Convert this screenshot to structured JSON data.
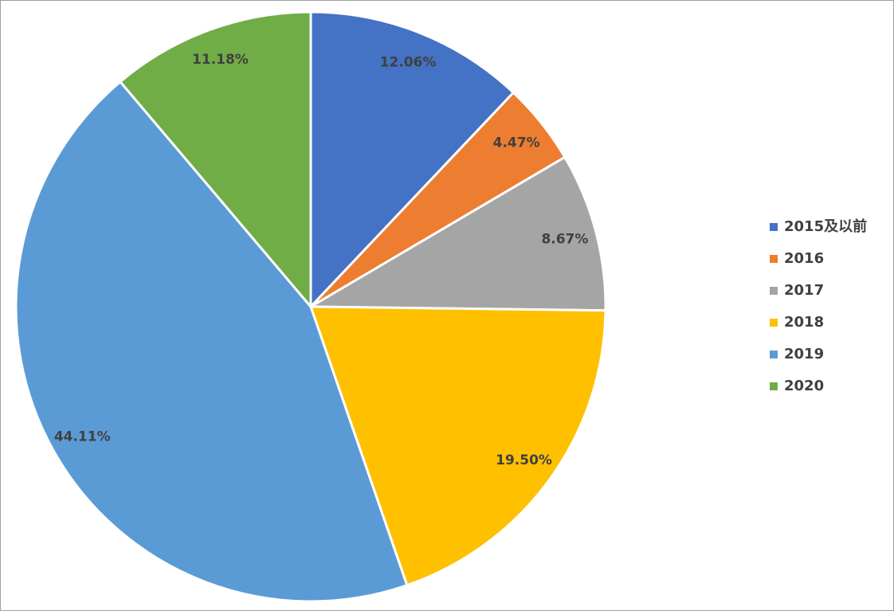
{
  "chart_data": {
    "type": "pie",
    "categories": [
      "2015及以前",
      "2016",
      "2017",
      "2018",
      "2019",
      "2020"
    ],
    "values": [
      12.06,
      4.47,
      8.67,
      19.5,
      44.11,
      11.18
    ],
    "value_labels": [
      "12.06%",
      "4.47%",
      "8.67%",
      "19.50%",
      "44.11%",
      "11.18%"
    ],
    "colors": [
      "#4472c4",
      "#ed7d31",
      "#a5a5a5",
      "#ffc000",
      "#5b9bd5",
      "#70ad47"
    ],
    "legend": "right"
  }
}
